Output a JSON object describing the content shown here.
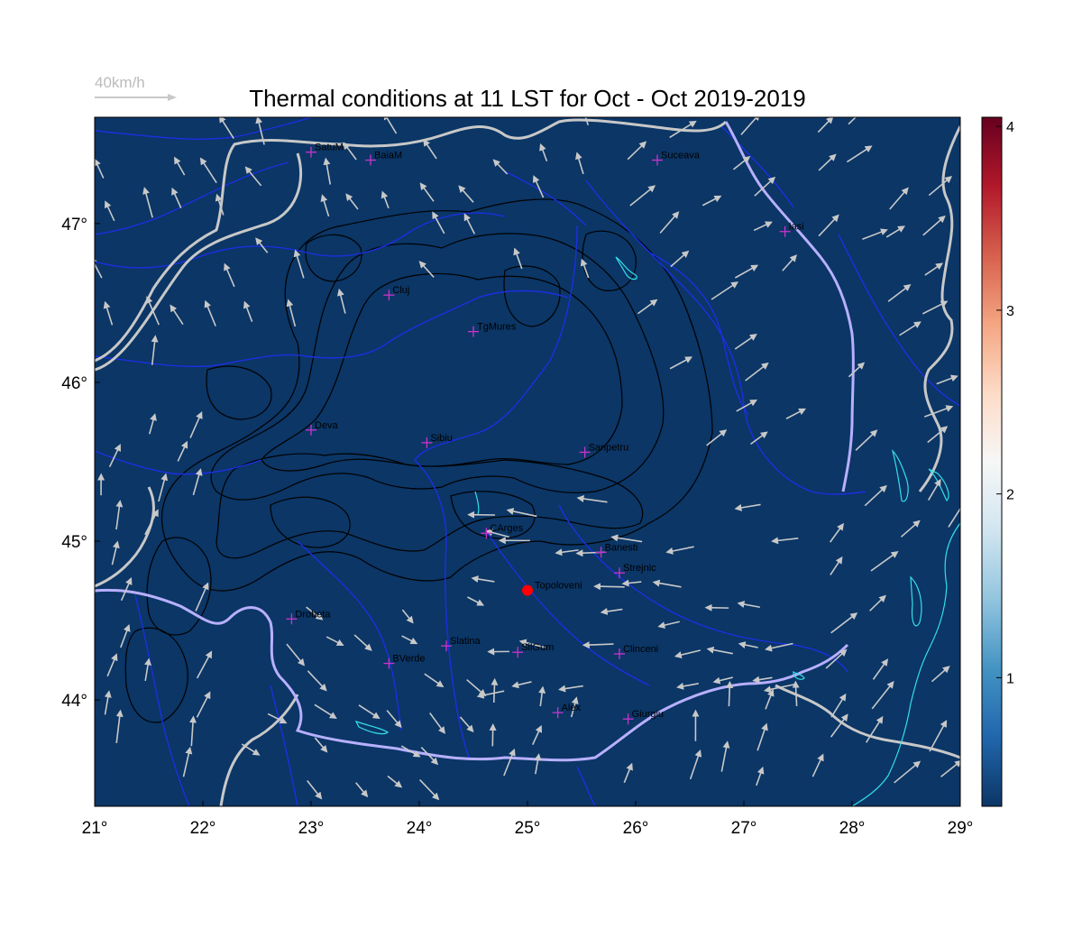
{
  "title": "Thermal conditions at 11 LST for Oct - Oct  2019-2019",
  "wind_scale": {
    "label": "40km/h",
    "color": "#c8c8c8"
  },
  "map": {
    "background_color": "#0b3666",
    "lon_range": [
      21,
      29
    ],
    "lat_range": [
      43.33,
      47.67
    ],
    "lon_ticks": [
      {
        "value": 21,
        "label": "21°"
      },
      {
        "value": 22,
        "label": "22°"
      },
      {
        "value": 23,
        "label": "23°"
      },
      {
        "value": 24,
        "label": "24°"
      },
      {
        "value": 25,
        "label": "25°"
      },
      {
        "value": 26,
        "label": "26°"
      },
      {
        "value": 27,
        "label": "27°"
      },
      {
        "value": 28,
        "label": "28°"
      },
      {
        "value": 29,
        "label": "29°"
      }
    ],
    "lat_ticks": [
      {
        "value": 44,
        "label": "44°"
      },
      {
        "value": 45,
        "label": "45°"
      },
      {
        "value": 46,
        "label": "46°"
      },
      {
        "value": 47,
        "label": "47°"
      }
    ],
    "highlight_point": {
      "name": "Topoloveni",
      "lon": 25.0,
      "lat": 44.69,
      "color": "#ff0000"
    },
    "stations": [
      {
        "name": "SatuM",
        "lon": 23.0,
        "lat": 47.45
      },
      {
        "name": "BaiaM",
        "lon": 23.55,
        "lat": 47.4
      },
      {
        "name": "Suceava",
        "lon": 26.2,
        "lat": 47.4
      },
      {
        "name": "Iasi",
        "lon": 27.38,
        "lat": 46.95
      },
      {
        "name": "Cluj",
        "lon": 23.72,
        "lat": 46.55
      },
      {
        "name": "TgMures",
        "lon": 24.5,
        "lat": 46.32
      },
      {
        "name": "Deva",
        "lon": 23.0,
        "lat": 45.7
      },
      {
        "name": "Sibiu",
        "lon": 24.07,
        "lat": 45.62
      },
      {
        "name": "Sanpetru",
        "lon": 25.53,
        "lat": 45.56
      },
      {
        "name": "CArges",
        "lon": 24.62,
        "lat": 45.05
      },
      {
        "name": "Banesti",
        "lon": 25.68,
        "lat": 44.93
      },
      {
        "name": "Strejnic",
        "lon": 25.85,
        "lat": 44.8
      },
      {
        "name": "Drobeta",
        "lon": 22.82,
        "lat": 44.51
      },
      {
        "name": "Slatina",
        "lon": 24.25,
        "lat": 44.34
      },
      {
        "name": "SilGum",
        "lon": 24.91,
        "lat": 44.3
      },
      {
        "name": "Clinceni",
        "lon": 25.85,
        "lat": 44.29
      },
      {
        "name": "BVerde",
        "lon": 23.72,
        "lat": 44.23
      },
      {
        "name": "Alex",
        "lon": 25.28,
        "lat": 43.92
      },
      {
        "name": "Giurgiu",
        "lon": 25.93,
        "lat": 43.88
      }
    ],
    "station_marker_color": "#cc33cc",
    "colors": {
      "border": "#c8c8c8",
      "river": "#1c2fe0",
      "danube": "#b8b0ff",
      "lake": "#33e0e8",
      "contour": "#000000",
      "wind_arrow": "#c8c8c8"
    }
  },
  "colorbar": {
    "ticks": [
      {
        "value": 1,
        "label": "1"
      },
      {
        "value": 2,
        "label": "2"
      },
      {
        "value": 3,
        "label": "3"
      },
      {
        "value": 4,
        "label": "4"
      }
    ],
    "range": [
      0.3,
      4.05
    ],
    "stops": [
      "#0b3666",
      "#2166ac",
      "#4393c3",
      "#92c5de",
      "#d1e5f0",
      "#f7f7f7",
      "#fddbc7",
      "#f4a582",
      "#d6604d",
      "#b2182b",
      "#67001f"
    ]
  },
  "wind_field": {
    "regions": [
      {
        "lon": [
          21.0,
          23.3
        ],
        "lat": [
          46.3,
          47.7
        ],
        "deg": 115,
        "len": 28
      },
      {
        "lon": [
          23.3,
          25.8
        ],
        "lat": [
          46.6,
          47.7
        ],
        "deg": 120,
        "len": 22
      },
      {
        "lon": [
          25.8,
          29.0
        ],
        "lat": [
          45.5,
          47.7
        ],
        "deg": 35,
        "len": 30
      },
      {
        "lon": [
          21.0,
          22.2
        ],
        "lat": [
          43.4,
          46.3
        ],
        "deg": 75,
        "len": 30
      },
      {
        "lon": [
          22.2,
          24.6
        ],
        "lat": [
          43.4,
          44.7
        ],
        "deg": -40,
        "len": 25
      },
      {
        "lon": [
          24.6,
          27.6
        ],
        "lat": [
          44.0,
          45.3
        ],
        "deg": 180,
        "len": 28
      },
      {
        "lon": [
          24.6,
          27.6
        ],
        "lat": [
          43.4,
          44.0
        ],
        "deg": 80,
        "len": 28
      },
      {
        "lon": [
          27.6,
          29.0
        ],
        "lat": [
          43.4,
          45.5
        ],
        "deg": 50,
        "len": 32
      }
    ]
  }
}
